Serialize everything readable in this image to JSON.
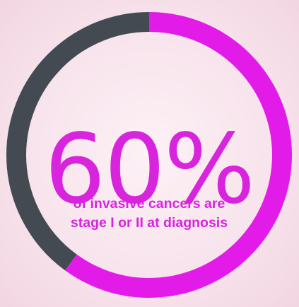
{
  "chart_data": {
    "type": "pie",
    "style": "donut",
    "values": [
      60,
      40
    ],
    "start_angle_deg": 0,
    "direction": "clockwise",
    "center_label": "60%",
    "caption_lines": [
      "of invasive cancers are",
      "stage I or II at diagnosis"
    ],
    "title": "",
    "xlabel": "",
    "ylabel": ""
  },
  "colors": {
    "highlight": "#e21be8",
    "remainder": "#434a52",
    "text": "#d824dc"
  }
}
